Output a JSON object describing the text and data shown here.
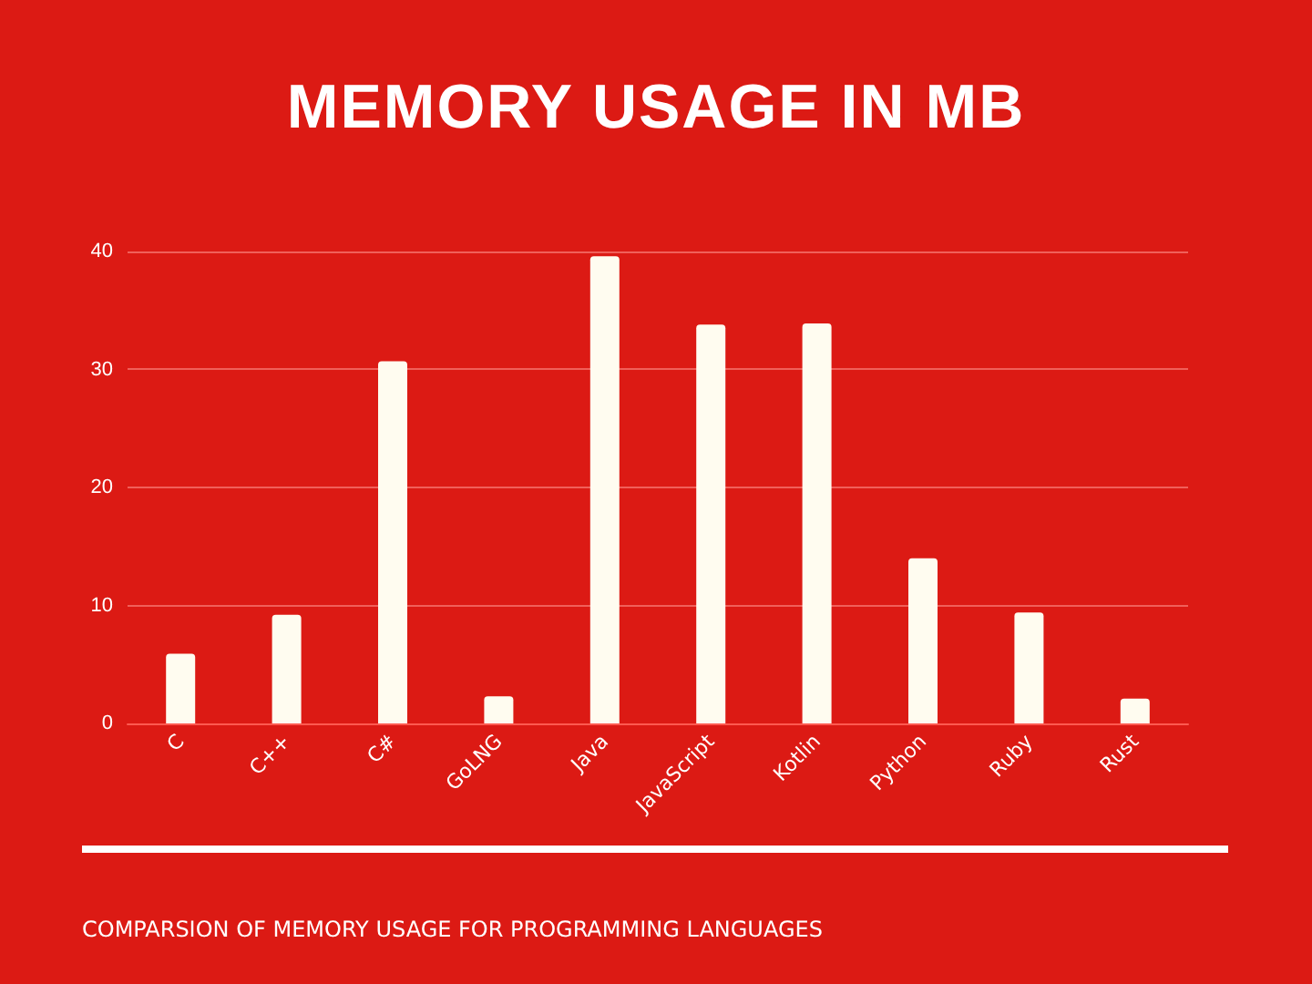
{
  "chart_data": {
    "type": "bar",
    "title": "MEMORY USAGE IN MB",
    "categories": [
      "C",
      "C++",
      "C#",
      "GoLNG",
      "Java",
      "JavaScript",
      "Kotlin",
      "Python",
      "Ruby",
      "Rust"
    ],
    "values": [
      5.9,
      9.2,
      30.7,
      2.3,
      39.6,
      33.8,
      33.9,
      14.0,
      9.4,
      2.1
    ],
    "color": "#fffcf0",
    "ylim": [
      0,
      40
    ],
    "yticks": [
      0,
      10,
      20,
      30,
      40
    ],
    "grid": "y",
    "annotations": [
      "COMPARSION OF MEMORY USAGE FOR PROGRAMMING LANGUAGES"
    ]
  }
}
